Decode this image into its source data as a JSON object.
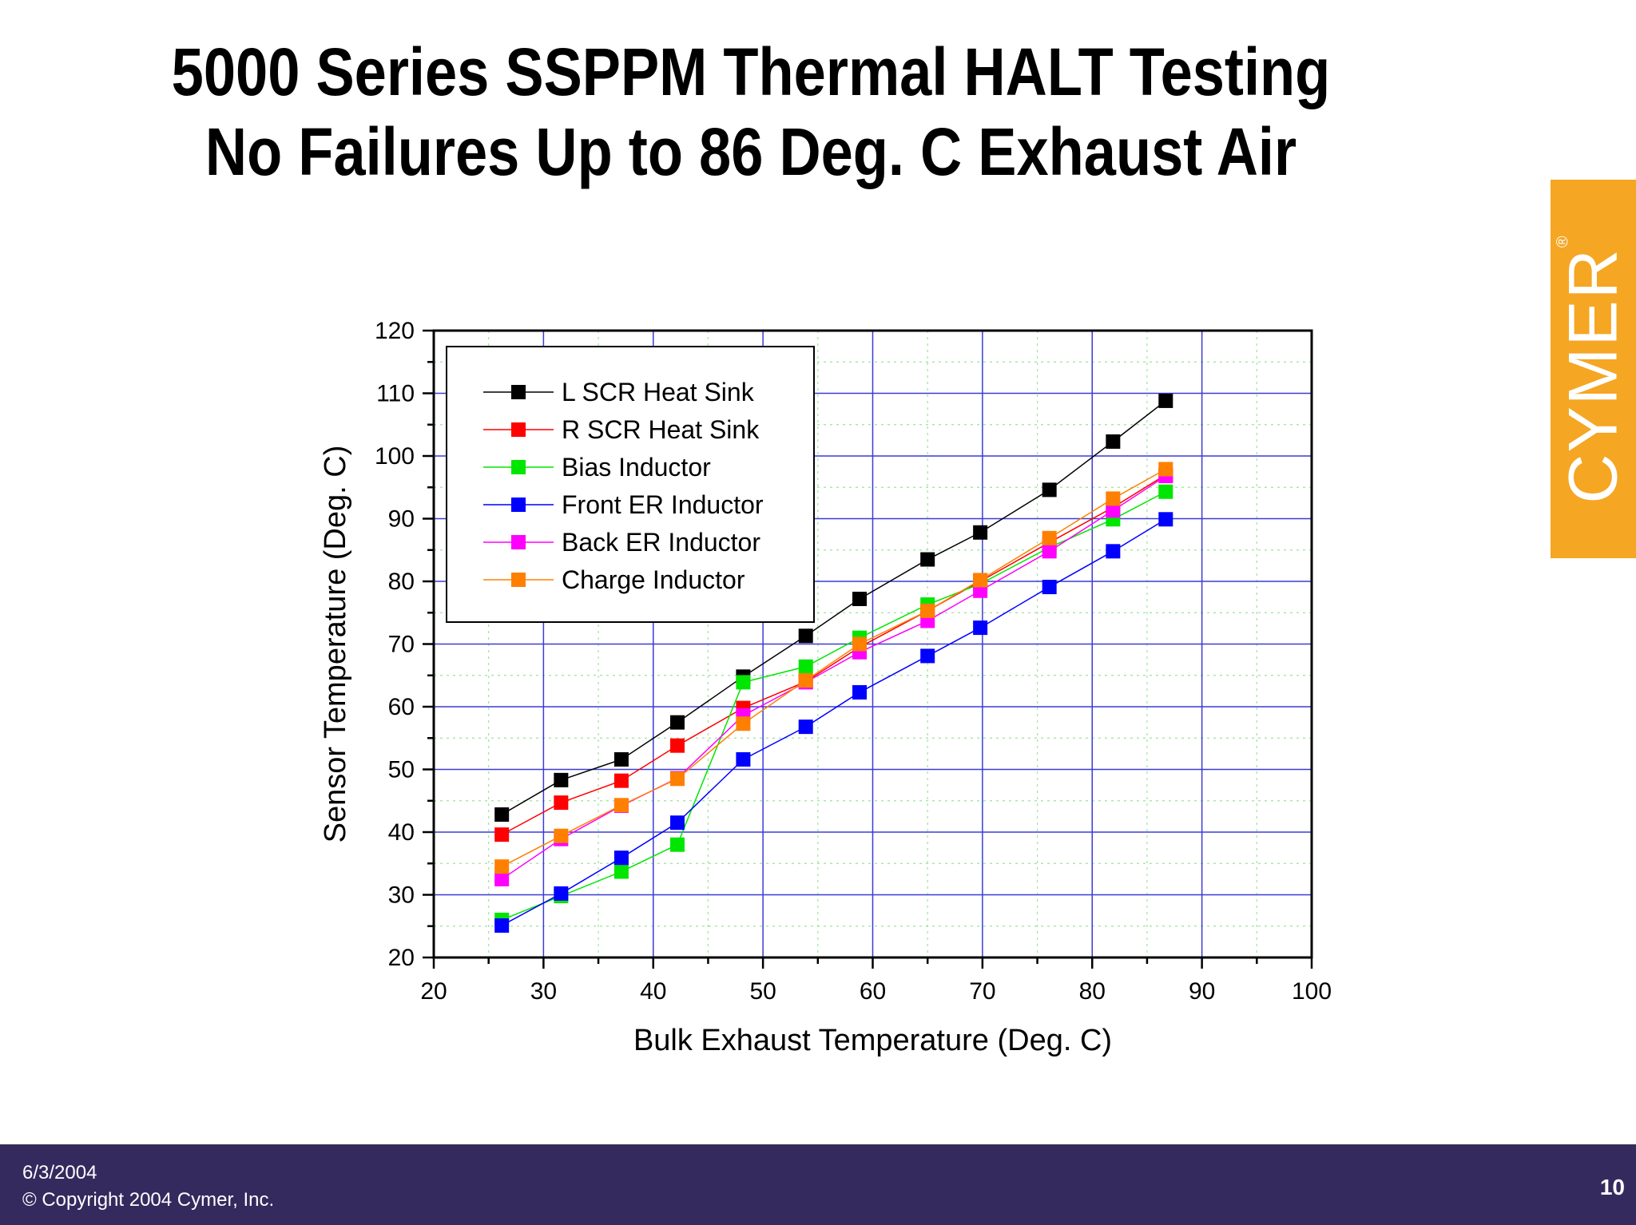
{
  "slide": {
    "title_line1": "5000 Series SSPPM Thermal HALT Testing",
    "title_line2": "No Failures Up to 86 Deg. C Exhaust Air",
    "logo_text": "CYMER",
    "logo_mark": "®",
    "logo_color": "#f5a623",
    "footer_date": "6/3/2004",
    "footer_copyright": "© Copyright 2004 Cymer, Inc.",
    "page_number": "10",
    "footer_color": "#352a5e"
  },
  "chart_data": {
    "type": "line",
    "xlabel": "Bulk Exhaust Temperature (Deg. C)",
    "ylabel": "Sensor Temperature (Deg. C)",
    "xlim": [
      20,
      100
    ],
    "ylim": [
      20,
      120
    ],
    "xticks": [
      "20",
      "30",
      "40",
      "50",
      "60",
      "70",
      "80",
      "90",
      "100"
    ],
    "yticks": [
      "20",
      "30",
      "40",
      "50",
      "60",
      "70",
      "80",
      "90",
      "100",
      "110",
      "120"
    ],
    "grid": true,
    "legend_position": "top-left",
    "x": [
      26.2,
      31.6,
      37.1,
      42.2,
      48.2,
      53.9,
      58.8,
      65.0,
      69.8,
      76.1,
      81.9,
      86.7
    ],
    "series": [
      {
        "name": "L SCR Heat Sink",
        "color": "#000000",
        "values": [
          42.8,
          48.3,
          51.6,
          57.5,
          64.8,
          71.3,
          77.2,
          83.5,
          87.8,
          94.6,
          102.3,
          108.8
        ]
      },
      {
        "name": "R SCR Heat Sink",
        "color": "#ff0000",
        "values": [
          39.6,
          44.7,
          48.2,
          53.8,
          59.8,
          64.0,
          69.5,
          75.3,
          80.0,
          86.2,
          91.8,
          97.0
        ]
      },
      {
        "name": "Bias Inductor",
        "color": "#00e600",
        "values": [
          26.0,
          29.8,
          33.7,
          38.0,
          63.9,
          66.4,
          71.0,
          76.3,
          79.6,
          85.4,
          89.9,
          94.3
        ]
      },
      {
        "name": "Front ER Inductor",
        "color": "#0000ff",
        "values": [
          25.1,
          30.2,
          35.9,
          41.5,
          51.6,
          56.8,
          62.3,
          68.1,
          72.6,
          79.1,
          84.8,
          89.9
        ]
      },
      {
        "name": "Back ER Inductor",
        "color": "#ff00ff",
        "values": [
          32.5,
          38.9,
          44.2,
          48.6,
          58.6,
          63.9,
          68.7,
          73.7,
          78.5,
          84.8,
          91.3,
          96.8
        ]
      },
      {
        "name": "Charge Inductor",
        "color": "#ff8000",
        "values": [
          34.5,
          39.4,
          44.3,
          48.5,
          57.3,
          64.2,
          70.0,
          75.3,
          80.2,
          86.9,
          93.2,
          97.9
        ]
      }
    ]
  }
}
